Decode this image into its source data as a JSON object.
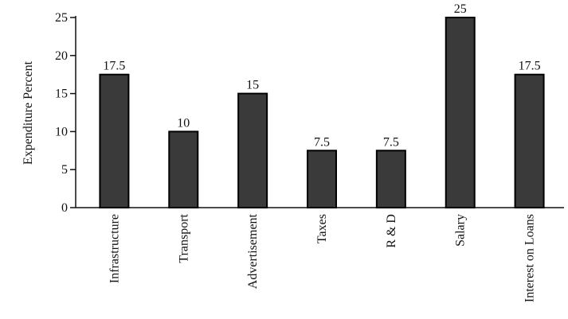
{
  "chart_data": {
    "type": "bar",
    "y_label": "Expenditure Percent",
    "categories": [
      "Infrastructure",
      "Transport",
      "Advertisement",
      "Taxes",
      "R & D",
      "Salary",
      "Interest on Loans"
    ],
    "values": [
      17.5,
      10,
      15,
      7.5,
      7.5,
      25,
      17.5
    ],
    "color": "#3a3a3a",
    "ylim": [
      0,
      25
    ],
    "yticks": [
      0,
      5,
      10,
      15,
      20,
      25
    ],
    "grid": false
  }
}
